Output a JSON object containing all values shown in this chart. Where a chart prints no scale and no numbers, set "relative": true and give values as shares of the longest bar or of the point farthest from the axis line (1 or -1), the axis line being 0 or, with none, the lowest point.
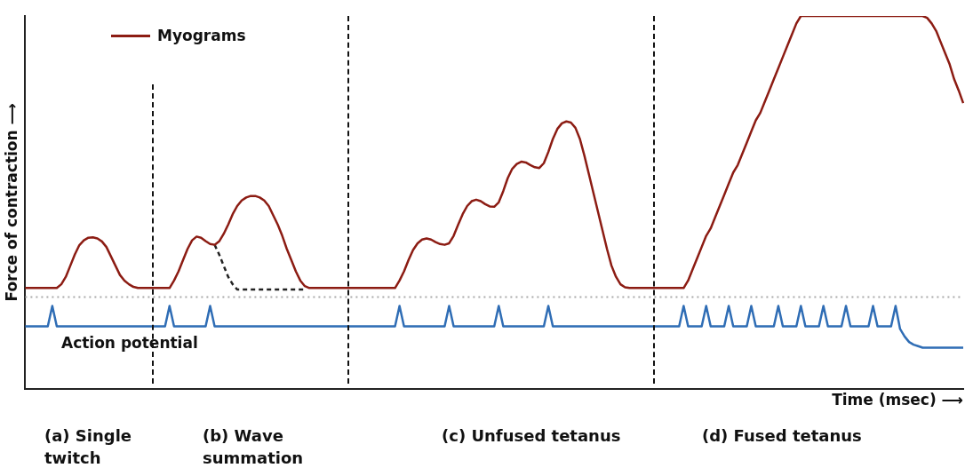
{
  "chart_data": {
    "type": "line",
    "relative": true,
    "ylabel": "Force of contraction ⟶",
    "xlabel": "Time (msec) ⟶",
    "legend": "top left",
    "marker": "none",
    "categories": [
      null,
      null,
      null,
      null,
      null,
      null,
      null,
      null,
      null,
      null,
      null,
      null,
      null,
      null,
      null,
      null,
      null,
      null,
      null,
      null,
      null,
      null,
      null,
      null,
      null,
      null,
      null,
      null,
      null,
      null,
      null,
      null,
      null,
      null,
      null,
      null,
      null,
      null,
      null,
      null,
      null,
      null,
      null,
      null,
      null,
      null,
      null,
      null,
      null,
      null,
      null,
      null,
      null,
      null,
      null,
      null,
      null,
      null,
      null,
      null,
      null,
      null,
      null,
      null,
      null,
      null,
      null,
      null,
      null,
      null,
      null,
      null,
      null,
      null,
      null,
      null,
      null,
      null,
      null,
      null,
      null,
      null,
      null,
      null,
      null,
      null,
      null,
      null,
      null,
      null,
      null,
      null,
      null,
      null,
      null,
      null,
      null,
      null,
      null,
      null,
      null,
      null,
      null,
      null,
      null,
      null,
      null,
      null,
      null,
      null,
      null,
      null,
      null,
      null,
      null,
      null,
      null,
      null,
      null,
      null,
      null,
      null,
      null,
      null,
      null,
      null,
      null,
      null,
      null,
      null,
      null,
      null,
      null,
      null,
      null,
      null,
      null,
      null,
      null,
      null,
      null,
      null,
      null,
      null,
      null,
      null,
      null,
      null,
      null,
      null,
      null,
      null,
      null,
      null,
      null,
      null,
      null,
      null,
      null,
      null,
      null,
      null,
      null,
      null,
      null,
      null,
      null,
      null,
      null,
      null,
      null,
      null,
      null,
      null,
      null,
      null,
      null,
      null,
      null,
      null,
      null,
      null,
      null,
      null,
      null,
      null,
      null,
      null,
      null,
      null,
      null,
      null,
      null,
      null,
      null,
      null,
      null,
      null,
      null,
      null,
      null,
      null,
      null,
      null,
      null,
      null,
      null,
      null,
      null
    ],
    "series": [
      {
        "name": "Myograms",
        "color": "#8c1c13",
        "line_style": "solid",
        "values": [
          0.27,
          0.27,
          0.27,
          0.27,
          0.27,
          0.27,
          0.27,
          0.27,
          0.28,
          0.3,
          0.33,
          0.36,
          0.385,
          0.398,
          0.405,
          0.406,
          0.403,
          0.395,
          0.38,
          0.355,
          0.33,
          0.305,
          0.29,
          0.28,
          0.273,
          0.27,
          0.27,
          0.27,
          0.27,
          0.27,
          0.27,
          0.27,
          0.27,
          0.29,
          0.315,
          0.345,
          0.375,
          0.398,
          0.408,
          0.405,
          0.396,
          0.388,
          0.386,
          0.395,
          0.415,
          0.44,
          0.468,
          0.49,
          0.505,
          0.513,
          0.517,
          0.517,
          0.513,
          0.505,
          0.49,
          0.465,
          0.44,
          0.41,
          0.375,
          0.345,
          0.315,
          0.29,
          0.275,
          0.27,
          0.27,
          0.27,
          0.27,
          0.27,
          0.27,
          0.27,
          0.27,
          0.27,
          0.27,
          0.27,
          0.27,
          0.27,
          0.27,
          0.27,
          0.27,
          0.27,
          0.27,
          0.27,
          0.27,
          0.29,
          0.315,
          0.345,
          0.372,
          0.39,
          0.4,
          0.403,
          0.4,
          0.393,
          0.388,
          0.386,
          0.39,
          0.41,
          0.44,
          0.468,
          0.49,
          0.503,
          0.507,
          0.503,
          0.495,
          0.489,
          0.488,
          0.5,
          0.53,
          0.565,
          0.59,
          0.603,
          0.609,
          0.607,
          0.6,
          0.594,
          0.592,
          0.605,
          0.635,
          0.67,
          0.697,
          0.712,
          0.717,
          0.714,
          0.7,
          0.67,
          0.625,
          0.575,
          0.525,
          0.475,
          0.425,
          0.375,
          0.33,
          0.3,
          0.28,
          0.272,
          0.27,
          0.27,
          0.27,
          0.27,
          0.27,
          0.27,
          0.27,
          0.27,
          0.27,
          0.27,
          0.27,
          0.27,
          0.27,
          0.29,
          0.32,
          0.35,
          0.38,
          0.41,
          0.43,
          0.46,
          0.49,
          0.52,
          0.55,
          0.58,
          0.6,
          0.63,
          0.66,
          0.69,
          0.72,
          0.74,
          0.77,
          0.8,
          0.83,
          0.86,
          0.89,
          0.92,
          0.95,
          0.98,
          1.0,
          1.0,
          1.0,
          1.0,
          1.0,
          1.0,
          1.0,
          1.0,
          1.0,
          1.0,
          1.0,
          1.0,
          1.0,
          1.0,
          1.0,
          1.0,
          1.0,
          1.0,
          1.0,
          1.0,
          1.0,
          1.0,
          1.0,
          1.0,
          1.0,
          1.0,
          1.0,
          1.0,
          0.995,
          0.98,
          0.96,
          0.93,
          0.9,
          0.87,
          0.83,
          0.8,
          0.766
        ]
      },
      {
        "color": "#222222",
        "line_style": "dashed",
        "values": [
          null,
          null,
          null,
          null,
          null,
          null,
          null,
          null,
          null,
          null,
          null,
          null,
          null,
          null,
          null,
          null,
          null,
          null,
          null,
          null,
          null,
          null,
          null,
          null,
          null,
          null,
          null,
          null,
          null,
          null,
          null,
          null,
          null,
          null,
          null,
          null,
          null,
          null,
          null,
          null,
          null,
          null,
          0.386,
          0.36,
          0.33,
          0.3,
          0.28,
          0.266,
          0.266,
          0.266,
          0.266,
          0.266,
          0.266,
          0.266,
          0.266,
          0.266,
          0.266,
          0.266,
          0.266,
          0.266,
          0.266,
          0.266,
          0.266,
          null,
          null,
          null,
          null,
          null,
          null,
          null,
          null,
          null,
          null,
          null,
          null,
          null,
          null,
          null,
          null,
          null,
          null,
          null,
          null,
          null,
          null,
          null,
          null,
          null,
          null,
          null,
          null,
          null,
          null,
          null,
          null,
          null,
          null,
          null,
          null,
          null,
          null,
          null,
          null,
          null,
          null,
          null,
          null,
          null,
          null,
          null,
          null,
          null,
          null,
          null,
          null,
          null,
          null,
          null,
          null,
          null,
          null,
          null,
          null,
          null,
          null,
          null,
          null,
          null,
          null,
          null,
          null,
          null,
          null,
          null,
          null,
          null,
          null,
          null,
          null,
          null,
          null,
          null,
          null,
          null,
          null,
          null,
          null,
          null,
          null,
          null,
          null,
          null,
          null,
          null,
          null,
          null,
          null,
          null,
          null,
          null,
          null,
          null,
          null,
          null,
          null,
          null,
          null,
          null,
          null,
          null,
          null,
          null,
          null,
          null,
          null,
          null,
          null,
          null,
          null,
          null,
          null,
          null,
          null,
          null,
          null,
          null,
          null,
          null,
          null,
          null,
          null,
          null,
          null,
          null,
          null,
          null,
          null,
          null,
          null,
          null,
          null,
          null,
          null,
          null,
          null,
          null,
          null,
          null,
          null
        ]
      },
      {
        "name": "Action potential",
        "color": "#2f6db5",
        "line_style": "solid",
        "values": [
          0.167,
          0.167,
          0.167,
          0.167,
          0.167,
          0.167,
          0.222,
          0.167,
          0.167,
          0.167,
          0.167,
          0.167,
          0.167,
          0.167,
          0.167,
          0.167,
          0.167,
          0.167,
          0.167,
          0.167,
          0.167,
          0.167,
          0.167,
          0.167,
          0.167,
          0.167,
          0.167,
          0.167,
          0.167,
          0.167,
          0.167,
          0.167,
          0.222,
          0.167,
          0.167,
          0.167,
          0.167,
          0.167,
          0.167,
          0.167,
          0.167,
          0.222,
          0.167,
          0.167,
          0.167,
          0.167,
          0.167,
          0.167,
          0.167,
          0.167,
          0.167,
          0.167,
          0.167,
          0.167,
          0.167,
          0.167,
          0.167,
          0.167,
          0.167,
          0.167,
          0.167,
          0.167,
          0.167,
          0.167,
          0.167,
          0.167,
          0.167,
          0.167,
          0.167,
          0.167,
          0.167,
          0.167,
          0.167,
          0.167,
          0.167,
          0.167,
          0.167,
          0.167,
          0.167,
          0.167,
          0.167,
          0.167,
          0.167,
          0.222,
          0.167,
          0.167,
          0.167,
          0.167,
          0.167,
          0.167,
          0.167,
          0.167,
          0.167,
          0.167,
          0.222,
          0.167,
          0.167,
          0.167,
          0.167,
          0.167,
          0.167,
          0.167,
          0.167,
          0.167,
          0.167,
          0.222,
          0.167,
          0.167,
          0.167,
          0.167,
          0.167,
          0.167,
          0.167,
          0.167,
          0.167,
          0.167,
          0.222,
          0.167,
          0.167,
          0.167,
          0.167,
          0.167,
          0.167,
          0.167,
          0.167,
          0.167,
          0.167,
          0.167,
          0.167,
          0.167,
          0.167,
          0.167,
          0.167,
          0.167,
          0.167,
          0.167,
          0.167,
          0.167,
          0.167,
          0.167,
          0.167,
          0.167,
          0.167,
          0.167,
          0.167,
          0.167,
          0.222,
          0.167,
          0.167,
          0.167,
          0.167,
          0.222,
          0.167,
          0.167,
          0.167,
          0.167,
          0.222,
          0.167,
          0.167,
          0.167,
          0.167,
          0.222,
          0.167,
          0.167,
          0.167,
          0.167,
          0.167,
          0.222,
          0.167,
          0.167,
          0.167,
          0.167,
          0.222,
          0.167,
          0.167,
          0.167,
          0.167,
          0.222,
          0.167,
          0.167,
          0.167,
          0.167,
          0.222,
          0.167,
          0.167,
          0.167,
          0.167,
          0.167,
          0.222,
          0.167,
          0.167,
          0.167,
          0.167,
          0.222,
          0.16,
          0.14,
          0.125,
          0.118,
          0.114,
          0.11,
          0.11,
          0.11,
          0.11,
          0.11,
          0.11,
          0.11,
          0.11,
          0.11,
          0.11
        ]
      }
    ],
    "ref_lines": [
      {
        "axis": "y",
        "value": 0.246,
        "color": "#aaaaaa",
        "line_style": "dotted"
      }
    ],
    "annotations": [
      "(a) Single twitch",
      "(b) Wave summation",
      "(c) Unfused tetanus",
      "(d) Fused tetanus"
    ]
  }
}
